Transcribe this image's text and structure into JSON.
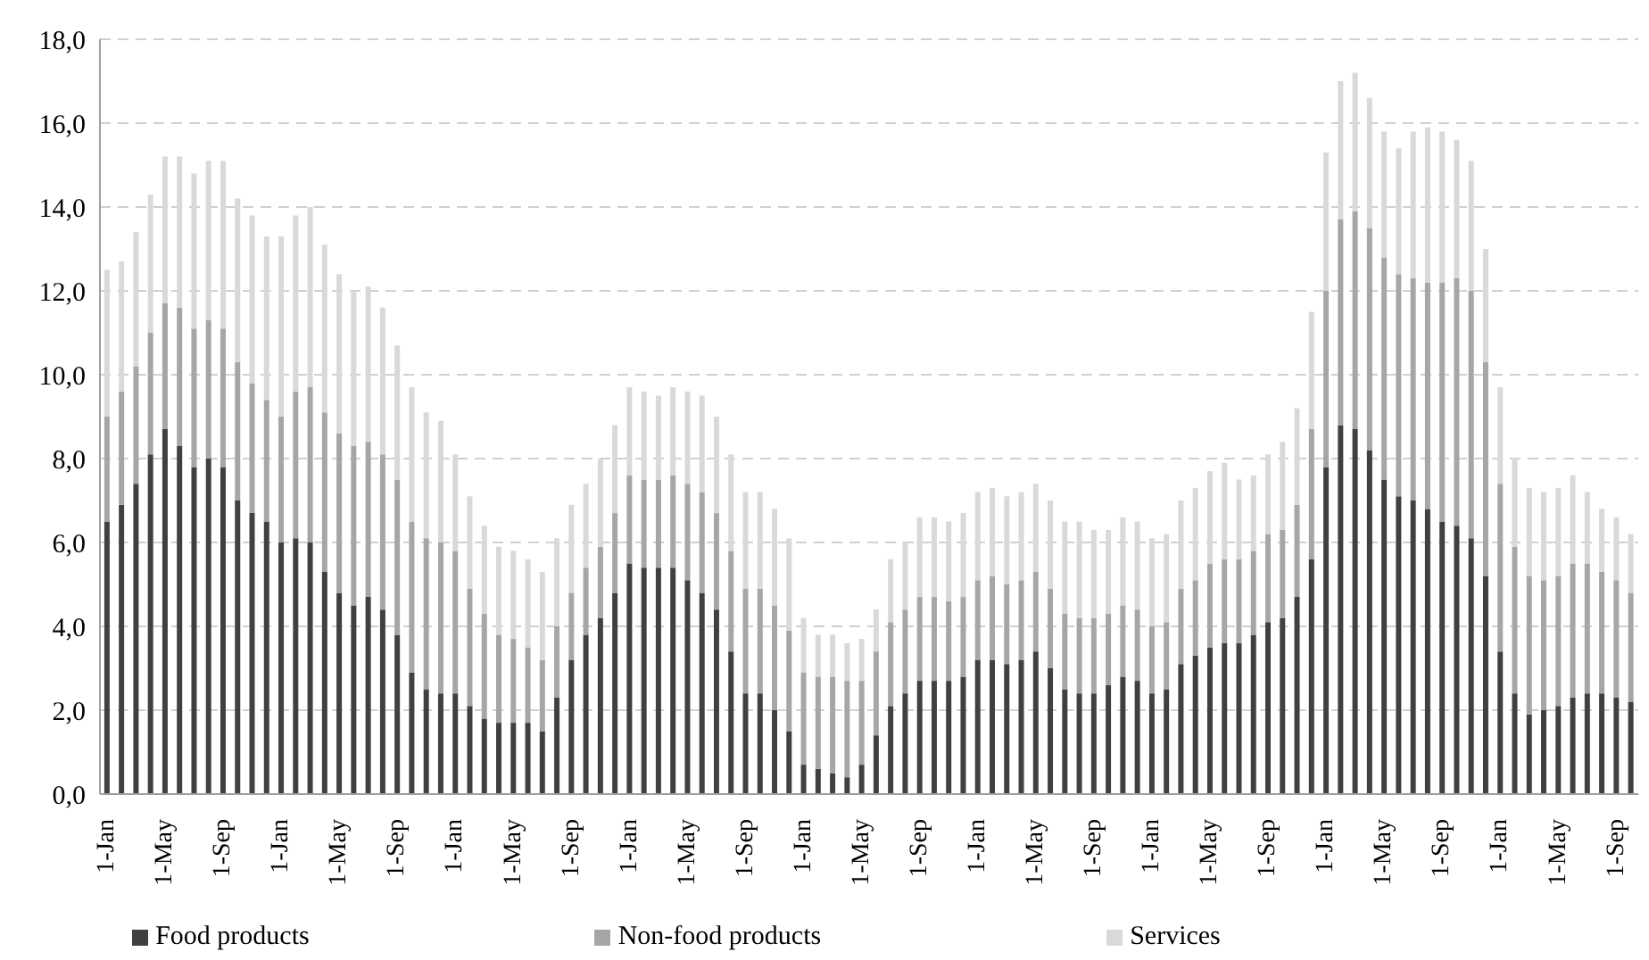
{
  "chart_data": {
    "type": "bar",
    "stacked": true,
    "categories": [
      "1-Jan",
      null,
      null,
      null,
      "1-May",
      null,
      null,
      null,
      "1-Sep",
      null,
      null,
      null,
      "1-Jan",
      null,
      null,
      null,
      "1-May",
      null,
      null,
      null,
      "1-Sep",
      null,
      null,
      null,
      "1-Jan",
      null,
      null,
      null,
      "1-May",
      null,
      null,
      null,
      "1-Sep",
      null,
      null,
      null,
      "1-Jan",
      null,
      null,
      null,
      "1-May",
      null,
      null,
      null,
      "1-Sep",
      null,
      null,
      null,
      "1-Jan",
      null,
      null,
      null,
      "1-May",
      null,
      null,
      null,
      "1-Sep",
      null,
      null,
      null,
      "1-Jan",
      null,
      null,
      null,
      "1-May",
      null,
      null,
      null,
      "1-Sep",
      null,
      null,
      null,
      "1-Jan",
      null,
      null,
      null,
      "1-May",
      null,
      null,
      null,
      "1-Sep",
      null,
      null,
      null,
      "1-Jan",
      null,
      null,
      null,
      "1-May",
      null,
      null,
      null,
      "1-Sep",
      null,
      null,
      null,
      "1-Jan",
      null,
      null,
      null,
      "1-May",
      null,
      null,
      null,
      "1-Sep",
      null
    ],
    "series": [
      {
        "name": "Food products",
        "color": "#404040",
        "values": [
          6.5,
          6.9,
          7.4,
          8.1,
          8.7,
          8.3,
          7.8,
          8.0,
          7.8,
          7.0,
          6.7,
          6.5,
          6.0,
          6.1,
          6.0,
          5.3,
          4.8,
          4.5,
          4.7,
          4.4,
          3.8,
          2.9,
          2.5,
          2.4,
          2.4,
          2.1,
          1.8,
          1.7,
          1.7,
          1.7,
          1.5,
          2.3,
          3.2,
          3.8,
          4.2,
          4.8,
          5.5,
          5.4,
          5.4,
          5.4,
          5.1,
          4.8,
          4.4,
          3.4,
          2.4,
          2.4,
          2.0,
          1.5,
          0.7,
          0.6,
          0.5,
          0.4,
          0.7,
          1.4,
          2.1,
          2.4,
          2.7,
          2.7,
          2.7,
          2.8,
          3.2,
          3.2,
          3.1,
          3.2,
          3.4,
          3.0,
          2.5,
          2.4,
          2.4,
          2.6,
          2.8,
          2.7,
          2.4,
          2.5,
          3.1,
          3.3,
          3.5,
          3.6,
          3.6,
          3.8,
          4.1,
          4.2,
          4.7,
          5.6,
          7.8,
          8.8,
          8.7,
          8.2,
          7.5,
          7.1,
          7.0,
          6.8,
          6.5,
          6.4,
          6.1,
          5.2,
          3.4,
          2.4,
          1.9,
          2.0,
          2.1,
          2.3,
          2.4,
          2.4,
          2.3,
          2.2
        ]
      },
      {
        "name": "Non-food products",
        "color": "#a6a6a6",
        "values": [
          2.5,
          2.7,
          2.8,
          2.9,
          3.0,
          3.3,
          3.3,
          3.3,
          3.3,
          3.3,
          3.1,
          2.9,
          3.0,
          3.5,
          3.7,
          3.8,
          3.8,
          3.8,
          3.7,
          3.7,
          3.7,
          3.6,
          3.6,
          3.6,
          3.4,
          2.8,
          2.5,
          2.1,
          2.0,
          1.8,
          1.7,
          1.7,
          1.6,
          1.6,
          1.7,
          1.9,
          2.1,
          2.1,
          2.1,
          2.2,
          2.3,
          2.4,
          2.3,
          2.4,
          2.5,
          2.5,
          2.5,
          2.4,
          2.2,
          2.2,
          2.3,
          2.3,
          2.0,
          2.0,
          2.0,
          2.0,
          2.0,
          2.0,
          1.9,
          1.9,
          1.9,
          2.0,
          1.9,
          1.9,
          1.9,
          1.9,
          1.8,
          1.8,
          1.8,
          1.7,
          1.7,
          1.7,
          1.6,
          1.6,
          1.8,
          1.8,
          2.0,
          2.0,
          2.0,
          2.0,
          2.1,
          2.1,
          2.2,
          3.1,
          4.2,
          4.9,
          5.2,
          5.3,
          5.3,
          5.3,
          5.3,
          5.4,
          5.7,
          5.9,
          5.9,
          5.1,
          4.0,
          3.5,
          3.3,
          3.1,
          3.1,
          3.2,
          3.1,
          2.9,
          2.8,
          2.6
        ]
      },
      {
        "name": "Services",
        "color": "#d9d9d9",
        "values": [
          3.5,
          3.1,
          3.2,
          3.3,
          3.5,
          3.6,
          3.7,
          3.8,
          4.0,
          3.9,
          4.0,
          3.9,
          4.3,
          4.2,
          4.3,
          4.0,
          3.8,
          3.7,
          3.7,
          3.5,
          3.2,
          3.2,
          3.0,
          2.9,
          2.3,
          2.2,
          2.1,
          2.1,
          2.1,
          2.1,
          2.1,
          2.1,
          2.1,
          2.0,
          2.1,
          2.1,
          2.1,
          2.1,
          2.0,
          2.1,
          2.2,
          2.3,
          2.3,
          2.3,
          2.3,
          2.3,
          2.3,
          2.2,
          1.3,
          1.0,
          1.0,
          0.9,
          1.0,
          1.0,
          1.5,
          1.6,
          1.9,
          1.9,
          1.9,
          2.0,
          2.1,
          2.1,
          2.1,
          2.1,
          2.1,
          2.1,
          2.2,
          2.3,
          2.1,
          2.0,
          2.1,
          2.1,
          2.1,
          2.1,
          2.1,
          2.2,
          2.2,
          2.3,
          1.9,
          1.8,
          1.9,
          2.1,
          2.3,
          2.8,
          3.3,
          3.3,
          3.3,
          3.1,
          3.0,
          3.0,
          3.5,
          3.7,
          3.6,
          3.3,
          3.1,
          2.7,
          2.3,
          2.1,
          2.1,
          2.1,
          2.1,
          2.1,
          1.7,
          1.5,
          1.5,
          1.4
        ]
      }
    ],
    "ylim": [
      0,
      18
    ],
    "yticks": [
      {
        "value": 0,
        "label": "0,0"
      },
      {
        "value": 2,
        "label": "2,0"
      },
      {
        "value": 4,
        "label": "4,0"
      },
      {
        "value": 6,
        "label": "6,0"
      },
      {
        "value": 8,
        "label": "8,0"
      },
      {
        "value": 10,
        "label": "10,0"
      },
      {
        "value": 12,
        "label": "12,0"
      },
      {
        "value": 14,
        "label": "14,0"
      },
      {
        "value": 16,
        "label": "16,0"
      },
      {
        "value": 18,
        "label": "18,0"
      }
    ],
    "grid": "y",
    "legend": "bottom"
  }
}
